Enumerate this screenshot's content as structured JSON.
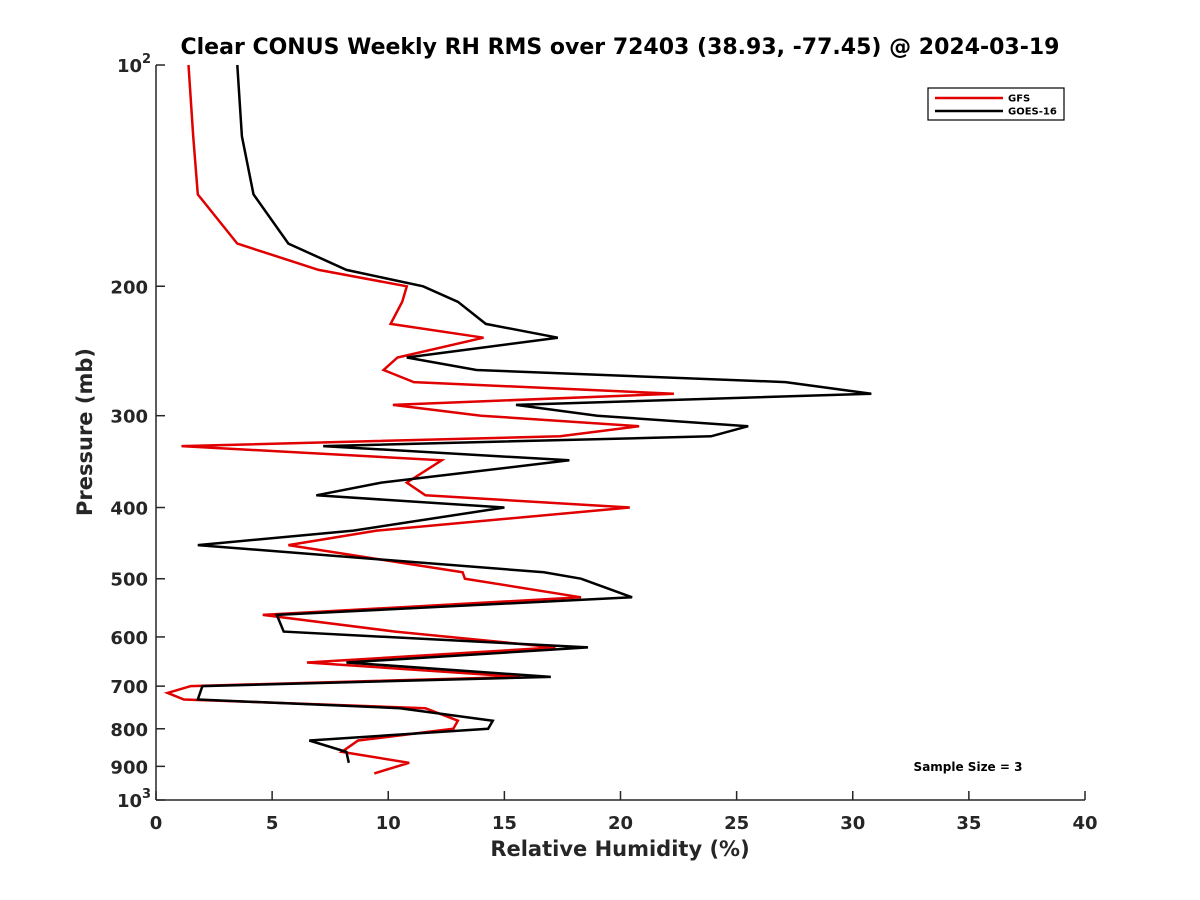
{
  "chart_data": {
    "type": "line",
    "title": "Clear CONUS Weekly RH RMS over 72403 (38.93, -77.45) @ 2024-03-19",
    "xlabel": "Relative Humidity (%)",
    "ylabel": "Pressure (mb)",
    "xlim": [
      0,
      40
    ],
    "ylim": [
      100,
      1000
    ],
    "yscale": "log",
    "y_reversed": true,
    "xticks": [
      0,
      5,
      10,
      15,
      20,
      25,
      30,
      35,
      40
    ],
    "yticks": [
      {
        "value": 100,
        "label": "10",
        "exp": "2"
      },
      {
        "value": 200,
        "label": "200"
      },
      {
        "value": 300,
        "label": "300"
      },
      {
        "value": 400,
        "label": "400"
      },
      {
        "value": 500,
        "label": "500"
      },
      {
        "value": 600,
        "label": "600"
      },
      {
        "value": 700,
        "label": "700"
      },
      {
        "value": 800,
        "label": "800"
      },
      {
        "value": 900,
        "label": "900"
      },
      {
        "value": 1000,
        "label": "10",
        "exp": "3"
      }
    ],
    "grid": false,
    "legend_position": "top-right",
    "annotation": "Sample Size = 3",
    "series": [
      {
        "name": "GFS",
        "color": "#e00000",
        "points": [
          [
            1.4,
            100
          ],
          [
            1.6,
            125
          ],
          [
            1.8,
            150
          ],
          [
            3.5,
            175
          ],
          [
            7,
            190
          ],
          [
            10.8,
            200
          ],
          [
            10.6,
            210
          ],
          [
            10.1,
            225
          ],
          [
            14.1,
            235
          ],
          [
            10.4,
            250
          ],
          [
            9.8,
            260
          ],
          [
            11.1,
            270
          ],
          [
            22.3,
            280
          ],
          [
            10.2,
            290
          ],
          [
            14,
            300
          ],
          [
            20.8,
            310
          ],
          [
            17.4,
            320
          ],
          [
            1.1,
            330
          ],
          [
            12.3,
            345
          ],
          [
            10.8,
            370
          ],
          [
            11.6,
            385
          ],
          [
            20.4,
            400
          ],
          [
            9.5,
            430
          ],
          [
            5.7,
            450
          ],
          [
            13.2,
            490
          ],
          [
            13.3,
            500
          ],
          [
            18.3,
            530
          ],
          [
            4.6,
            560
          ],
          [
            10.3,
            590
          ],
          [
            17.2,
            620
          ],
          [
            6.5,
            650
          ],
          [
            15.7,
            680
          ],
          [
            1.5,
            700
          ],
          [
            0.5,
            715
          ],
          [
            1.2,
            730
          ],
          [
            11.6,
            750
          ],
          [
            13,
            780
          ],
          [
            12.8,
            800
          ],
          [
            8.7,
            830
          ],
          [
            8,
            860
          ],
          [
            10.9,
            890
          ],
          [
            9.4,
            920
          ]
        ]
      },
      {
        "name": "GOES-16",
        "color": "#000000",
        "points": [
          [
            3.5,
            100
          ],
          [
            3.7,
            125
          ],
          [
            4.2,
            150
          ],
          [
            5.7,
            175
          ],
          [
            8.2,
            190
          ],
          [
            11.5,
            200
          ],
          [
            13,
            210
          ],
          [
            14.2,
            225
          ],
          [
            17.3,
            235
          ],
          [
            10.8,
            250
          ],
          [
            13.8,
            260
          ],
          [
            27.1,
            270
          ],
          [
            30.8,
            280
          ],
          [
            15.5,
            290
          ],
          [
            19,
            300
          ],
          [
            25.5,
            310
          ],
          [
            23.9,
            320
          ],
          [
            7.2,
            330
          ],
          [
            17.8,
            345
          ],
          [
            9.7,
            370
          ],
          [
            6.9,
            385
          ],
          [
            15,
            400
          ],
          [
            8.5,
            430
          ],
          [
            1.8,
            450
          ],
          [
            16.7,
            490
          ],
          [
            18.3,
            500
          ],
          [
            20.5,
            530
          ],
          [
            5.2,
            560
          ],
          [
            5.5,
            590
          ],
          [
            18.6,
            620
          ],
          [
            8.2,
            650
          ],
          [
            17,
            680
          ],
          [
            2,
            700
          ],
          [
            1.8,
            730
          ],
          [
            10.5,
            750
          ],
          [
            14.5,
            780
          ],
          [
            14.3,
            800
          ],
          [
            6.6,
            830
          ],
          [
            8.2,
            860
          ],
          [
            8.3,
            890
          ]
        ]
      }
    ]
  }
}
